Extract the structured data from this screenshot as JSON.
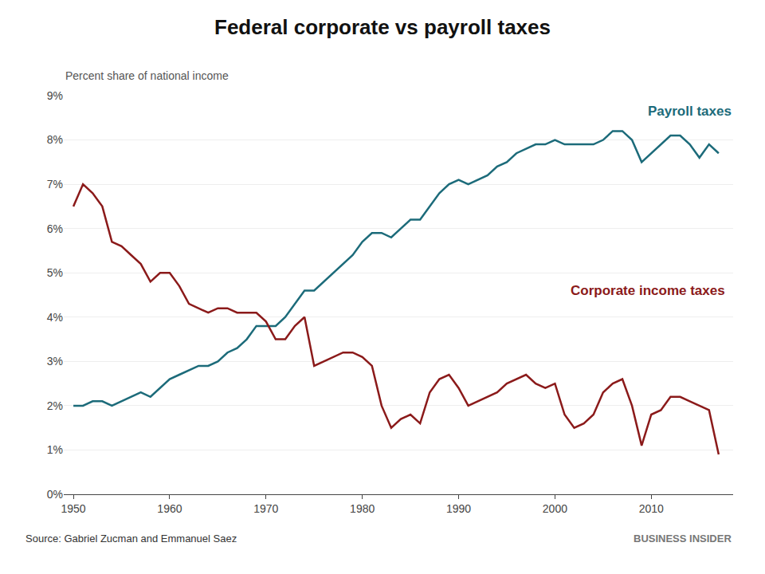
{
  "chart_data": {
    "type": "line",
    "title": "Federal corporate vs payroll taxes",
    "subtitle": "Percent share of national income",
    "annotations": [
      "Source: Gabriel Zucman and Emmanuel Saez",
      "BUSINESS INSIDER"
    ],
    "x": [
      1950,
      1951,
      1952,
      1953,
      1954,
      1955,
      1956,
      1957,
      1958,
      1959,
      1960,
      1961,
      1962,
      1963,
      1964,
      1965,
      1966,
      1967,
      1968,
      1969,
      1970,
      1971,
      1972,
      1973,
      1974,
      1975,
      1976,
      1977,
      1978,
      1979,
      1980,
      1981,
      1982,
      1983,
      1984,
      1985,
      1986,
      1987,
      1988,
      1989,
      1990,
      1991,
      1992,
      1993,
      1994,
      1995,
      1996,
      1997,
      1998,
      1999,
      2000,
      2001,
      2002,
      2003,
      2004,
      2005,
      2006,
      2007,
      2008,
      2009,
      2010,
      2011,
      2012,
      2013,
      2014,
      2015,
      2016,
      2017
    ],
    "series": [
      {
        "name": "Payroll taxes",
        "color": "#1c6b7a",
        "values": [
          0.02,
          0.02,
          0.021,
          0.021,
          0.02,
          0.021,
          0.022,
          0.023,
          0.022,
          0.024,
          0.026,
          0.027,
          0.028,
          0.029,
          0.029,
          0.03,
          0.032,
          0.033,
          0.035,
          0.038,
          0.038,
          0.038,
          0.04,
          0.043,
          0.046,
          0.046,
          0.048,
          0.05,
          0.052,
          0.054,
          0.057,
          0.059,
          0.059,
          0.058,
          0.06,
          0.062,
          0.062,
          0.065,
          0.068,
          0.07,
          0.071,
          0.07,
          0.071,
          0.072,
          0.074,
          0.075,
          0.077,
          0.078,
          0.079,
          0.079,
          0.08,
          0.079,
          0.079,
          0.079,
          0.079,
          0.08,
          0.082,
          0.082,
          0.08,
          0.075,
          0.077,
          0.079,
          0.081,
          0.081,
          0.079,
          0.076,
          0.079,
          0.077
        ]
      },
      {
        "name": "Corporate income taxes",
        "color": "#8b1a1a",
        "values": [
          0.065,
          0.07,
          0.068,
          0.065,
          0.057,
          0.056,
          0.054,
          0.052,
          0.048,
          0.05,
          0.05,
          0.047,
          0.043,
          0.042,
          0.041,
          0.042,
          0.042,
          0.041,
          0.041,
          0.041,
          0.039,
          0.035,
          0.035,
          0.038,
          0.04,
          0.029,
          0.03,
          0.031,
          0.032,
          0.032,
          0.031,
          0.029,
          0.02,
          0.015,
          0.017,
          0.018,
          0.016,
          0.023,
          0.026,
          0.027,
          0.024,
          0.02,
          0.021,
          0.022,
          0.023,
          0.025,
          0.026,
          0.027,
          0.025,
          0.024,
          0.025,
          0.018,
          0.015,
          0.016,
          0.018,
          0.023,
          0.025,
          0.026,
          0.02,
          0.011,
          0.018,
          0.019,
          0.022,
          0.022,
          0.021,
          0.02,
          0.019,
          0.009
        ]
      }
    ],
    "xlim": [
      1949,
      2018.5
    ],
    "xticks": [
      1950,
      1960,
      1970,
      1980,
      1990,
      2000,
      2010
    ],
    "ylim": [
      0,
      0.09
    ],
    "yticks": [
      {
        "value": 0.0,
        "label": "0%"
      },
      {
        "value": 0.01,
        "label": "1%"
      },
      {
        "value": 0.02,
        "label": "2%"
      },
      {
        "value": 0.03,
        "label": "3%"
      },
      {
        "value": 0.04,
        "label": "4%"
      },
      {
        "value": 0.05,
        "label": "5%"
      },
      {
        "value": 0.06,
        "label": "6%"
      },
      {
        "value": 0.07,
        "label": "7%"
      },
      {
        "value": 0.08,
        "label": "8%"
      },
      {
        "value": 0.09,
        "label": "9%"
      }
    ],
    "grid": true
  }
}
